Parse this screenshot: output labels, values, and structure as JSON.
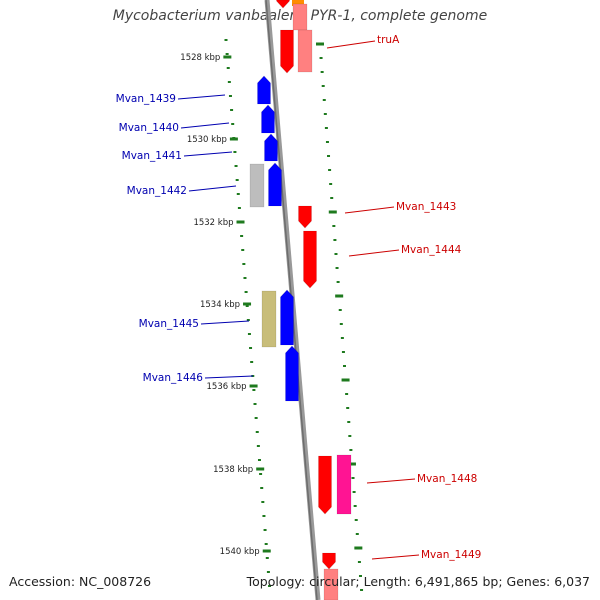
{
  "title": "Mycobacterium vanbaalenii PYR-1, complete genome",
  "accession": "Accession: NC_008726",
  "summary": "Topology: circular; Length: 6,491,865 bp; Genes: 6,037",
  "colors": {
    "backbone": "#8a8a8a",
    "tick": "#1e7a1e",
    "label_left": "#0000b0",
    "label_right": "#cc0000",
    "gene_blue": "#0000ff",
    "gene_red": "#ff0000",
    "gene_pink": "#ff8080",
    "gene_magenta": "#ff1493",
    "gene_gray": "#bdbdbd",
    "gene_khaki": "#c8bd7a",
    "gene_orange": "#ff8c00"
  },
  "kbp_ticks": [
    "1528 kbp",
    "1530 kbp",
    "1532 kbp",
    "1534 kbp",
    "1536 kbp",
    "1538 kbp",
    "1540 kbp"
  ],
  "gene_labels": [
    "truA",
    "Mvan_1439",
    "Mvan_1440",
    "Mvan_1441",
    "Mvan_1442",
    "Mvan_1443",
    "Mvan_1444",
    "Mvan_1445",
    "Mvan_1446",
    "Mvan_1448",
    "Mvan_1449"
  ]
}
